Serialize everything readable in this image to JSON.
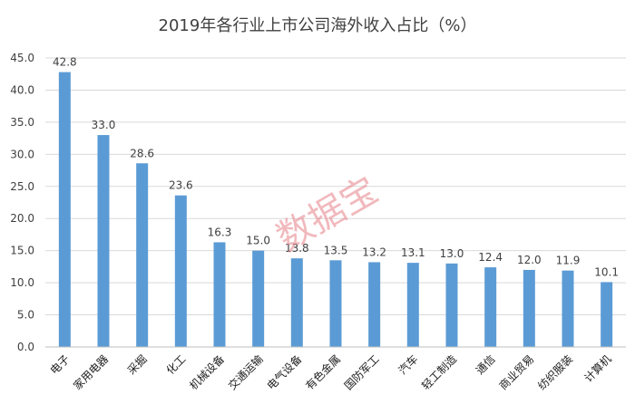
{
  "chart_data": {
    "type": "bar",
    "title": "2019年各行业上市公司海外收入占比（%）",
    "xlabel": "",
    "ylabel": "",
    "ylim": [
      0,
      45
    ],
    "yticks": [
      "0.0",
      "5.0",
      "10.0",
      "15.0",
      "20.0",
      "25.0",
      "30.0",
      "35.0",
      "40.0",
      "45.0"
    ],
    "grid": true,
    "legend": "none",
    "categories": [
      "电子",
      "家用电器",
      "采掘",
      "化工",
      "机械设备",
      "交通运输",
      "电气设备",
      "有色金属",
      "国防军工",
      "汽车",
      "轻工制造",
      "通信",
      "商业贸易",
      "纺织服装",
      "计算机"
    ],
    "values": [
      42.8,
      33.0,
      28.6,
      23.6,
      16.3,
      15.0,
      13.8,
      13.5,
      13.2,
      13.1,
      13.0,
      12.4,
      12.0,
      11.9,
      10.1
    ],
    "value_labels": [
      "42.8",
      "33.0",
      "28.6",
      "23.6",
      "16.3",
      "15.0",
      "13.8",
      "13.5",
      "13.2",
      "13.1",
      "13.0",
      "12.4",
      "12.0",
      "11.9",
      "10.1"
    ],
    "bar_color": "#5b9bd5",
    "grid_color": "#d9d9d9",
    "watermark": "数据宝",
    "watermark_color": "#e88b92"
  }
}
